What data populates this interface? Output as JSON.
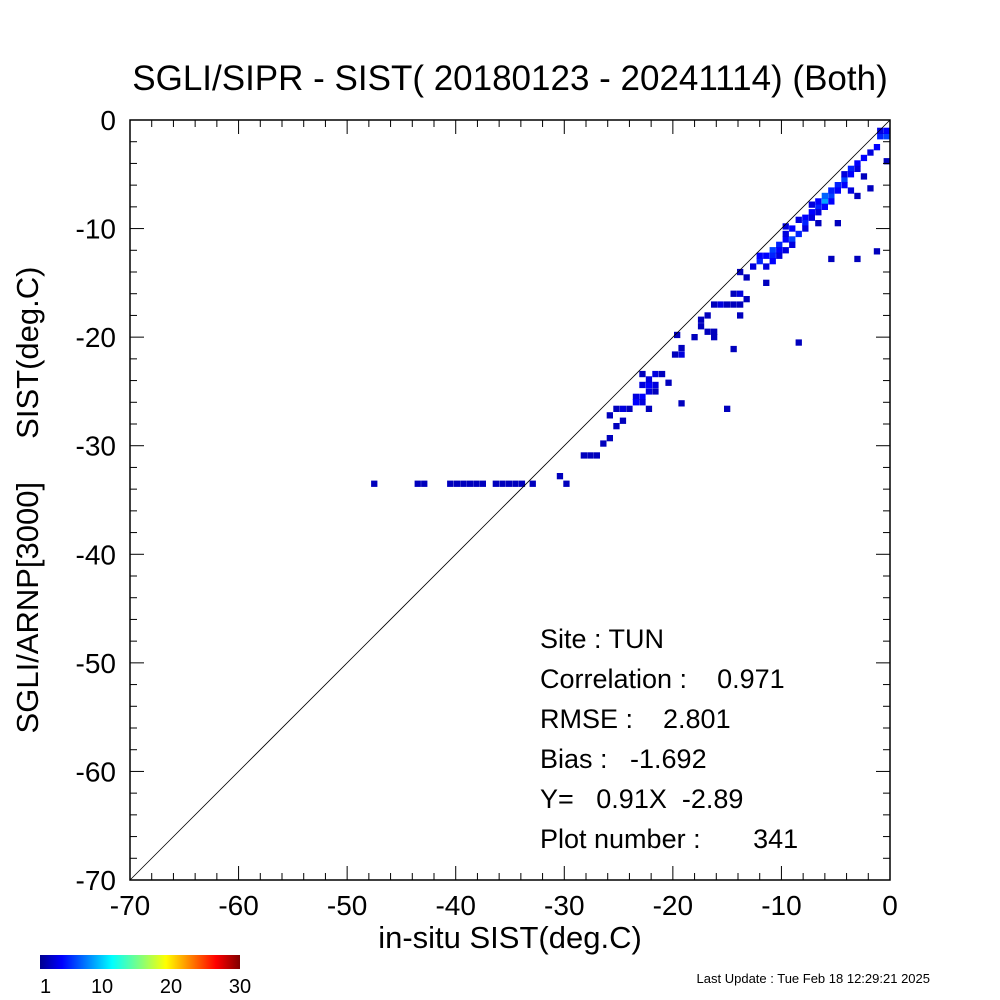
{
  "chart_data": {
    "type": "heatmap",
    "title": "SGLI/SIPR - SIST( 20180123 - 20241114) (Both)",
    "xlabel": "in-situ SIST(deg.C)",
    "ylabel": "SGLI/ARNP[3000]     SIST(deg.C)",
    "xlim": [
      -70,
      0
    ],
    "ylim": [
      -70,
      0
    ],
    "x_ticks": [
      "-70",
      "-60",
      "-50",
      "-40",
      "-30",
      "-20",
      "-10",
      "0"
    ],
    "y_ticks": [
      "0",
      "-10",
      "-20",
      "-30",
      "-40",
      "-50",
      "-60",
      "-70"
    ],
    "grid": false,
    "reference_line": "y = x",
    "colorbar": {
      "min": 1,
      "max": 30,
      "tick_labels": [
        "1",
        "10",
        "20",
        "30"
      ],
      "colormap": "jet"
    },
    "stats": {
      "site": "Site : TUN",
      "correlation": "Correlation :    0.971",
      "rmse": "RMSE :    2.801",
      "bias": "Bias :   -1.692",
      "regression": "Y=   0.91X  -2.89",
      "plot_number": "Plot number :       341"
    },
    "cells": [
      {
        "x": -47.5,
        "y": -33.5,
        "count": 1
      },
      {
        "x": -43.5,
        "y": -33.5,
        "count": 1
      },
      {
        "x": -42.9,
        "y": -33.5,
        "count": 1
      },
      {
        "x": -40.5,
        "y": -33.5,
        "count": 1
      },
      {
        "x": -39.9,
        "y": -33.5,
        "count": 1
      },
      {
        "x": -39.3,
        "y": -33.5,
        "count": 1
      },
      {
        "x": -38.7,
        "y": -33.5,
        "count": 1
      },
      {
        "x": -38.1,
        "y": -33.5,
        "count": 1
      },
      {
        "x": -37.5,
        "y": -33.5,
        "count": 1
      },
      {
        "x": -36.3,
        "y": -33.5,
        "count": 1
      },
      {
        "x": -35.7,
        "y": -33.5,
        "count": 1
      },
      {
        "x": -35.1,
        "y": -33.5,
        "count": 1
      },
      {
        "x": -34.5,
        "y": -33.5,
        "count": 1
      },
      {
        "x": -33.9,
        "y": -33.5,
        "count": 1
      },
      {
        "x": -32.9,
        "y": -33.5,
        "count": 1
      },
      {
        "x": -30.4,
        "y": -32.8,
        "count": 1
      },
      {
        "x": -29.8,
        "y": -33.5,
        "count": 1
      },
      {
        "x": -28.2,
        "y": -30.9,
        "count": 1
      },
      {
        "x": -27.6,
        "y": -30.9,
        "count": 1
      },
      {
        "x": -27.0,
        "y": -30.9,
        "count": 1
      },
      {
        "x": -26.4,
        "y": -29.8,
        "count": 1
      },
      {
        "x": -25.8,
        "y": -29.3,
        "count": 1
      },
      {
        "x": -25.8,
        "y": -27.2,
        "count": 1
      },
      {
        "x": -25.2,
        "y": -28.2,
        "count": 1
      },
      {
        "x": -24.6,
        "y": -27.7,
        "count": 1
      },
      {
        "x": -25.2,
        "y": -26.6,
        "count": 1
      },
      {
        "x": -24.6,
        "y": -26.6,
        "count": 2
      },
      {
        "x": -24.0,
        "y": -26.6,
        "count": 1
      },
      {
        "x": -23.4,
        "y": -25.5,
        "count": 2
      },
      {
        "x": -23.4,
        "y": -26.0,
        "count": 3
      },
      {
        "x": -22.8,
        "y": -25.5,
        "count": 3
      },
      {
        "x": -22.8,
        "y": -26.0,
        "count": 2
      },
      {
        "x": -22.2,
        "y": -26.6,
        "count": 1
      },
      {
        "x": -22.2,
        "y": -25.0,
        "count": 2
      },
      {
        "x": -22.8,
        "y": -24.4,
        "count": 2
      },
      {
        "x": -22.2,
        "y": -24.4,
        "count": 3
      },
      {
        "x": -21.6,
        "y": -24.4,
        "count": 2
      },
      {
        "x": -22.2,
        "y": -23.9,
        "count": 2
      },
      {
        "x": -21.6,
        "y": -23.4,
        "count": 2
      },
      {
        "x": -21.0,
        "y": -23.4,
        "count": 1
      },
      {
        "x": -21.6,
        "y": -25.0,
        "count": 1
      },
      {
        "x": -22.8,
        "y": -23.4,
        "count": 1
      },
      {
        "x": -20.4,
        "y": -24.2,
        "count": 1
      },
      {
        "x": -19.8,
        "y": -21.6,
        "count": 1
      },
      {
        "x": -19.2,
        "y": -21.6,
        "count": 2
      },
      {
        "x": -19.2,
        "y": -21.0,
        "count": 1
      },
      {
        "x": -19.6,
        "y": -19.8,
        "count": 1
      },
      {
        "x": -19.2,
        "y": -26.1,
        "count": 1
      },
      {
        "x": -18.0,
        "y": -20.0,
        "count": 1
      },
      {
        "x": -17.4,
        "y": -19.0,
        "count": 1
      },
      {
        "x": -17.4,
        "y": -18.4,
        "count": 1
      },
      {
        "x": -16.8,
        "y": -18.0,
        "count": 1
      },
      {
        "x": -16.8,
        "y": -19.5,
        "count": 1
      },
      {
        "x": -16.2,
        "y": -19.5,
        "count": 1
      },
      {
        "x": -16.2,
        "y": -20.0,
        "count": 1
      },
      {
        "x": -16.2,
        "y": -17.0,
        "count": 1
      },
      {
        "x": -15.6,
        "y": -17.0,
        "count": 2
      },
      {
        "x": -15.0,
        "y": -17.0,
        "count": 1
      },
      {
        "x": -15.0,
        "y": -26.6,
        "count": 1
      },
      {
        "x": -14.4,
        "y": -16.0,
        "count": 1
      },
      {
        "x": -14.4,
        "y": -17.0,
        "count": 1
      },
      {
        "x": -13.8,
        "y": -16.0,
        "count": 2
      },
      {
        "x": -13.8,
        "y": -17.0,
        "count": 1
      },
      {
        "x": -14.4,
        "y": -21.1,
        "count": 1
      },
      {
        "x": -13.8,
        "y": -18.0,
        "count": 1
      },
      {
        "x": -13.8,
        "y": -14.0,
        "count": 1
      },
      {
        "x": -13.2,
        "y": -14.5,
        "count": 1
      },
      {
        "x": -13.2,
        "y": -16.5,
        "count": 1
      },
      {
        "x": -12.6,
        "y": -13.5,
        "count": 2
      },
      {
        "x": -12.0,
        "y": -13.0,
        "count": 4
      },
      {
        "x": -12.0,
        "y": -12.5,
        "count": 3
      },
      {
        "x": -11.4,
        "y": -12.5,
        "count": 3
      },
      {
        "x": -11.4,
        "y": -13.5,
        "count": 2
      },
      {
        "x": -11.4,
        "y": -15.0,
        "count": 1
      },
      {
        "x": -10.8,
        "y": -12.0,
        "count": 5
      },
      {
        "x": -10.8,
        "y": -12.5,
        "count": 4
      },
      {
        "x": -10.8,
        "y": -13.0,
        "count": 3
      },
      {
        "x": -10.2,
        "y": -11.5,
        "count": 4
      },
      {
        "x": -10.2,
        "y": -12.0,
        "count": 3
      },
      {
        "x": -10.2,
        "y": -12.5,
        "count": 2
      },
      {
        "x": -9.6,
        "y": -11.0,
        "count": 3
      },
      {
        "x": -9.6,
        "y": -10.5,
        "count": 2
      },
      {
        "x": -9.6,
        "y": -9.8,
        "count": 2
      },
      {
        "x": -9.6,
        "y": -12.0,
        "count": 2
      },
      {
        "x": -9.0,
        "y": -11.0,
        "count": 5
      },
      {
        "x": -9.0,
        "y": -10.0,
        "count": 3
      },
      {
        "x": -9.0,
        "y": -11.5,
        "count": 2
      },
      {
        "x": -8.4,
        "y": -10.5,
        "count": 4
      },
      {
        "x": -8.4,
        "y": -9.2,
        "count": 2
      },
      {
        "x": -8.4,
        "y": -20.5,
        "count": 1
      },
      {
        "x": -7.8,
        "y": -9.0,
        "count": 3
      },
      {
        "x": -7.8,
        "y": -9.5,
        "count": 4
      },
      {
        "x": -7.8,
        "y": -10.0,
        "count": 2
      },
      {
        "x": -7.2,
        "y": -8.5,
        "count": 3
      },
      {
        "x": -7.2,
        "y": -9.0,
        "count": 2
      },
      {
        "x": -7.2,
        "y": -7.8,
        "count": 2
      },
      {
        "x": -6.6,
        "y": -8.0,
        "count": 4
      },
      {
        "x": -6.6,
        "y": -7.5,
        "count": 3
      },
      {
        "x": -6.6,
        "y": -8.5,
        "count": 2
      },
      {
        "x": -6.6,
        "y": -9.5,
        "count": 1
      },
      {
        "x": -6.0,
        "y": -7.5,
        "count": 8
      },
      {
        "x": -6.0,
        "y": -7.0,
        "count": 6
      },
      {
        "x": -6.0,
        "y": -8.0,
        "count": 3
      },
      {
        "x": -5.4,
        "y": -7.0,
        "count": 5
      },
      {
        "x": -5.4,
        "y": -6.5,
        "count": 4
      },
      {
        "x": -5.4,
        "y": -7.5,
        "count": 3
      },
      {
        "x": -5.4,
        "y": -12.8,
        "count": 1
      },
      {
        "x": -4.8,
        "y": -6.0,
        "count": 4
      },
      {
        "x": -4.8,
        "y": -6.5,
        "count": 3
      },
      {
        "x": -4.8,
        "y": -9.5,
        "count": 1
      },
      {
        "x": -4.2,
        "y": -5.5,
        "count": 5
      },
      {
        "x": -4.2,
        "y": -6.0,
        "count": 3
      },
      {
        "x": -4.2,
        "y": -5.0,
        "count": 2
      },
      {
        "x": -3.6,
        "y": -4.5,
        "count": 4
      },
      {
        "x": -3.6,
        "y": -5.0,
        "count": 3
      },
      {
        "x": -3.6,
        "y": -6.5,
        "count": 2
      },
      {
        "x": -3.0,
        "y": -4.0,
        "count": 3
      },
      {
        "x": -3.0,
        "y": -4.5,
        "count": 2
      },
      {
        "x": -3.0,
        "y": -7.0,
        "count": 1
      },
      {
        "x": -3.0,
        "y": -12.8,
        "count": 1
      },
      {
        "x": -2.4,
        "y": -3.5,
        "count": 3
      },
      {
        "x": -2.4,
        "y": -5.2,
        "count": 1
      },
      {
        "x": -1.8,
        "y": -3.0,
        "count": 2
      },
      {
        "x": -1.8,
        "y": -6.3,
        "count": 1
      },
      {
        "x": -1.2,
        "y": -2.5,
        "count": 3
      },
      {
        "x": -1.2,
        "y": -12.1,
        "count": 1
      },
      {
        "x": -0.9,
        "y": -1.5,
        "count": 4
      },
      {
        "x": -0.3,
        "y": -1.5,
        "count": 5
      },
      {
        "x": -0.3,
        "y": -1.0,
        "count": 3
      },
      {
        "x": -0.9,
        "y": -1.0,
        "count": 2
      },
      {
        "x": -0.3,
        "y": -3.8,
        "count": 1
      }
    ]
  },
  "footer": {
    "last_update": "Last Update : Tue Feb 18 12:29:21 2025"
  }
}
